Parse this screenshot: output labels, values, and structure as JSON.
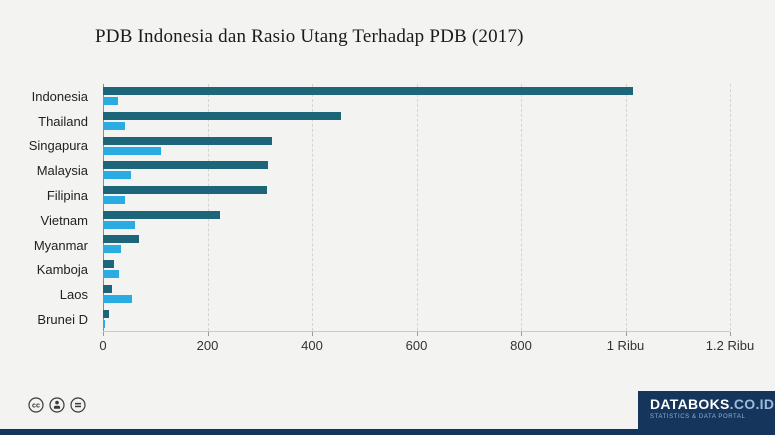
{
  "title": "PDB Indonesia dan Rasio Utang Terhadap PDB (2017)",
  "chart_data": {
    "type": "bar",
    "orientation": "horizontal",
    "title": "PDB Indonesia dan Rasio Utang Terhadap PDB (2017)",
    "categories": [
      "Indonesia",
      "Thailand",
      "Singapura",
      "Malaysia",
      "Filipina",
      "Vietnam",
      "Myanmar",
      "Kamboja",
      "Laos",
      "Brunei D"
    ],
    "series": [
      {
        "name": "PDB",
        "color": "#1d6578",
        "values": [
          1015,
          455,
          324,
          315,
          314,
          224,
          69,
          22,
          17,
          12
        ]
      },
      {
        "name": "Rasio Utang Terhadap PDB",
        "color": "#2aabe2",
        "values": [
          29,
          42,
          111,
          54,
          42,
          61,
          35,
          30,
          55,
          3
        ]
      }
    ],
    "xlim": [
      0,
      1200
    ],
    "x_ticks": [
      {
        "value": 0,
        "label": "0"
      },
      {
        "value": 200,
        "label": "200"
      },
      {
        "value": 400,
        "label": "400"
      },
      {
        "value": 600,
        "label": "600"
      },
      {
        "value": 800,
        "label": "800"
      },
      {
        "value": 1000,
        "label": "1 Ribu"
      },
      {
        "value": 1200,
        "label": "1.2 Ribu"
      }
    ],
    "grid": "vertical-dashed",
    "legend": "none"
  },
  "footer": {
    "license_icons": [
      "cc-icon",
      "attribution-icon",
      "equal-icon"
    ],
    "brand": {
      "name": "DATABOKS",
      "domain": ".CO.ID",
      "tagline": "STATISTICS & DATA PORTAL",
      "bg_color": "#16355d"
    }
  }
}
